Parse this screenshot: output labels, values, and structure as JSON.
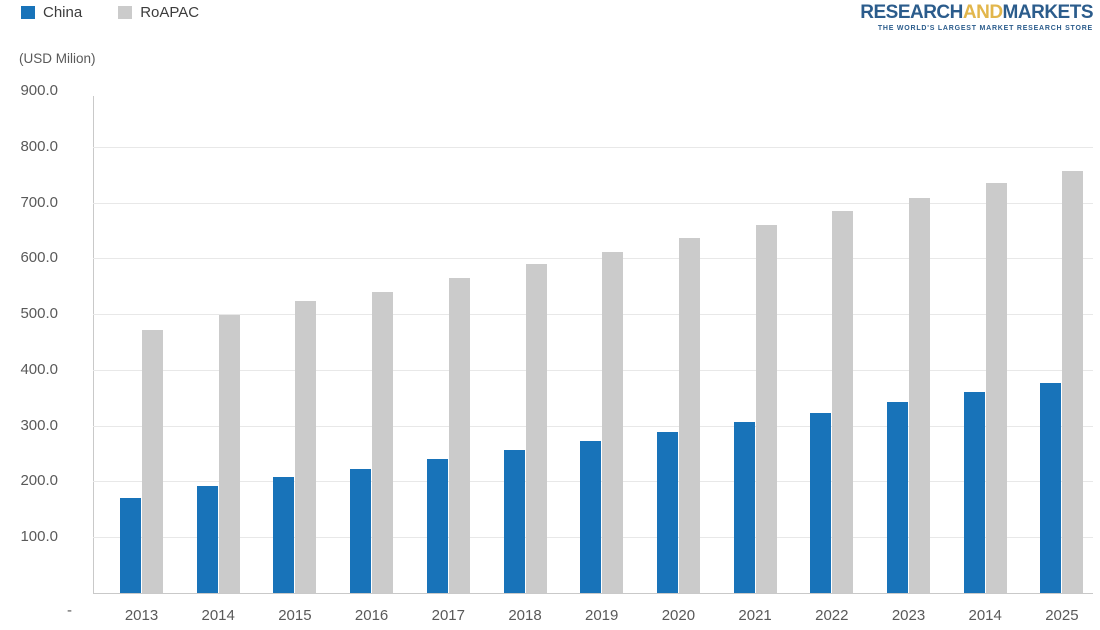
{
  "legend": {
    "items": [
      {
        "label": "China",
        "color": "#1873b9"
      },
      {
        "label": "RoAPAC",
        "color": "#cbcbcb"
      }
    ]
  },
  "logo": {
    "part1": "RESEARCH",
    "part2": "AND",
    "part3": "MARKETS",
    "tagline": "THE WORLD'S LARGEST MARKET RESEARCH STORE",
    "navy": "#2b5c8c",
    "gold": "#e2b64b"
  },
  "chart_data": {
    "type": "bar",
    "title": "",
    "unit_label": "(USD Milion)",
    "categories": [
      "2013",
      "2014",
      "2015",
      "2016",
      "2017",
      "2018",
      "2019",
      "2020",
      "2021",
      "2022",
      "2023",
      "2014",
      "2025"
    ],
    "series": [
      {
        "name": "China",
        "color": "#1873b9",
        "values": [
          170,
          192,
          208,
          223,
          240,
          257,
          272,
          288,
          307,
          323,
          342,
          360,
          376
        ]
      },
      {
        "name": "RoAPAC",
        "color": "#cbcbcb",
        "values": [
          472,
          499,
          523,
          540,
          565,
          590,
          611,
          636,
          660,
          684,
          708,
          735,
          756
        ]
      }
    ],
    "ylim": [
      0,
      900
    ],
    "ytick_step": 100,
    "ytick_labels": [
      "900.0",
      "800.0",
      "700.0",
      "600.0",
      "500.0",
      "400.0",
      "300.0",
      "200.0",
      "100.0"
    ],
    "zero_tick_label": "-",
    "grid": "horizontal-only",
    "legend_position": "top-left",
    "text_color": "#595959",
    "gridline_color": "#e8e8e8",
    "axis_color": "#c9c9c9"
  }
}
